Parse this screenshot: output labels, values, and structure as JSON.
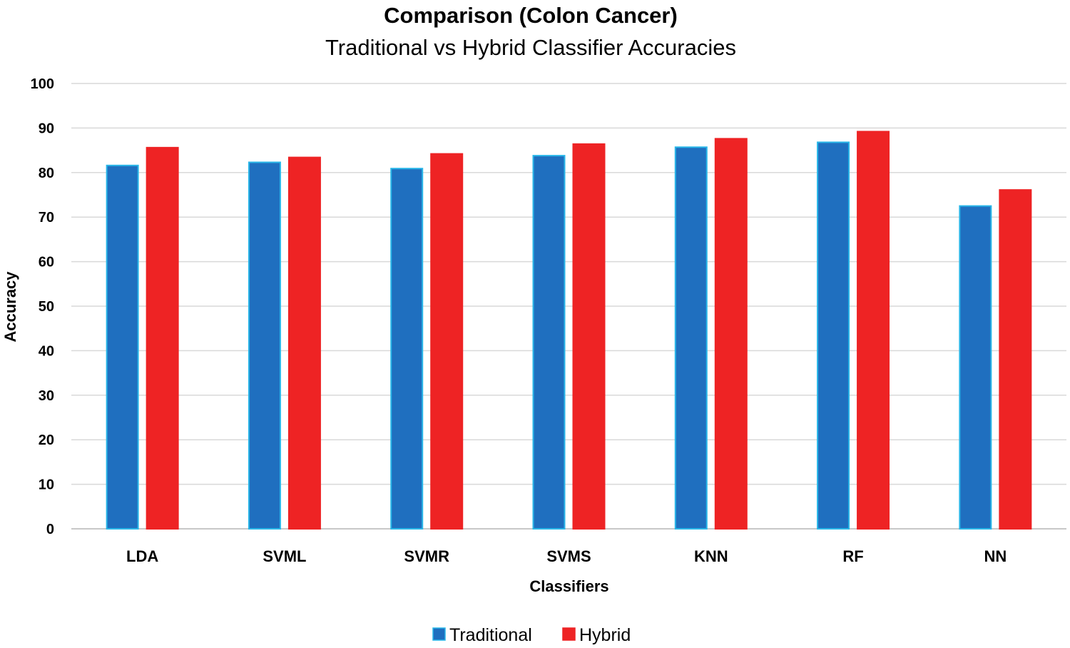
{
  "chart_data": {
    "type": "bar",
    "title": "Comparison (Colon Cancer)",
    "subtitle": "Traditional vs Hybrid Classifier Accuracies",
    "xlabel": "Classifiers",
    "ylabel": "Accuracy",
    "ylim": [
      0,
      100
    ],
    "yticks": [
      "0",
      "10",
      "20",
      "30",
      "40",
      "50",
      "60",
      "70",
      "80",
      "90",
      "100"
    ],
    "categories": [
      "LDA",
      "SVML",
      "SVMR",
      "SVMS",
      "KNN",
      "RF",
      "NN"
    ],
    "series": [
      {
        "name": "Traditional",
        "color": "#1f6fbf",
        "edge": "#29b6e8",
        "values": [
          81.6,
          82.3,
          80.9,
          83.8,
          85.7,
          86.8,
          72.5
        ]
      },
      {
        "name": "Hybrid",
        "color": "#ee2324",
        "edge": "#ee2324",
        "values": [
          85.6,
          83.4,
          84.2,
          86.4,
          87.6,
          89.2,
          76.1
        ]
      }
    ],
    "grid": true,
    "legend_position": "bottom-center"
  }
}
